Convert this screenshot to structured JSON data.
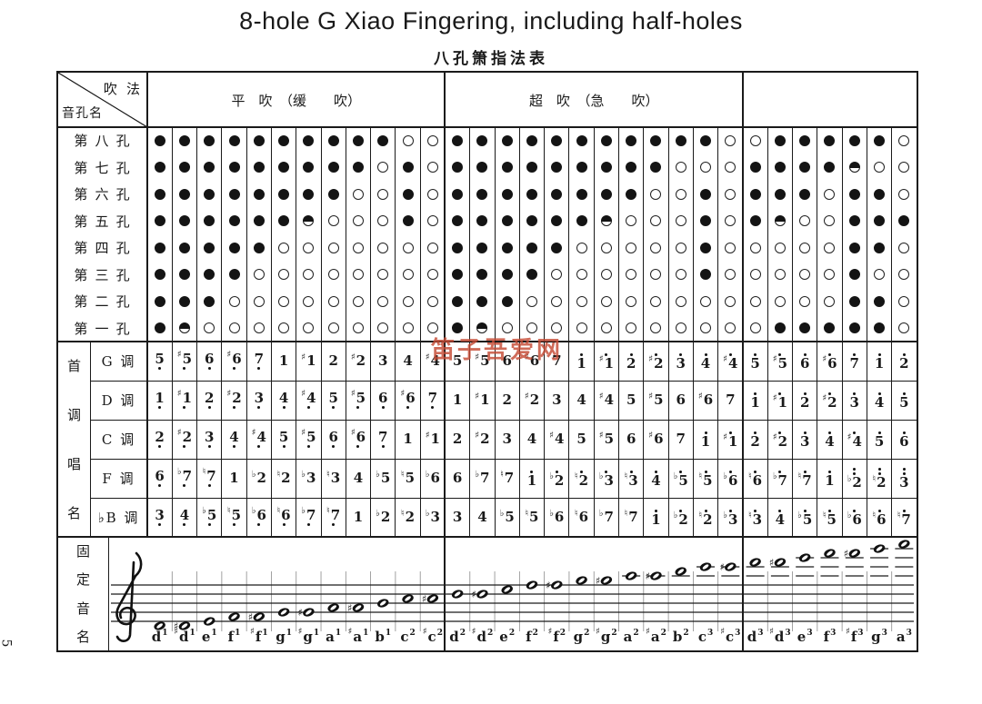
{
  "title": "8-hole G Xiao Fingering, including half-holes",
  "subtitle": "八孔箫指法表",
  "watermark": "笛子吾爱网",
  "page_number": "5",
  "corner": {
    "top_right": "吹 法",
    "bottom_left": "音孔名"
  },
  "blow_sections": [
    {
      "label": "平　吹　（缓　　吹）",
      "cols": 12
    },
    {
      "label": "超　吹　（急　　吹）",
      "cols": 12
    },
    {
      "label": "",
      "cols": 7
    }
  ],
  "hole_rows": [
    {
      "label": "第 八 孔",
      "pattern": "ffffffffffoofffffffffffoofffffo"
    },
    {
      "label": "第 七 孔",
      "pattern": "fffffffffofofffffffffoooffffhoo"
    },
    {
      "label": "第 六 孔",
      "pattern": "ffffffffoofoffffffffoofofffoffo"
    },
    {
      "label": "第 五 孔",
      "pattern": "ffffffhooofoffffffhooofofhoofff"
    },
    {
      "label": "第 四 孔",
      "pattern": "fffffooooooofffffooooofoooooffo"
    },
    {
      "label": "第 三 孔",
      "pattern": "ffffooooooooffffoooooofooooofoo"
    },
    {
      "label": "第 二 孔",
      "pattern": "fffooooooooofffoooooooooooooffo"
    },
    {
      "label": "第 一 孔",
      "pattern": "fhoooooooooofhooooooooooofffffo"
    }
  ],
  "solfege": {
    "side_label": "首调唱名",
    "rows": [
      {
        "key": "G 调",
        "cells": [
          "5,",
          "#5,",
          "6,",
          "#6,",
          "7,",
          "1",
          "#1",
          "2",
          "#2",
          "3",
          "4",
          "#4",
          "5",
          "#5",
          "6",
          "#6",
          "7",
          "1'",
          "#1'",
          "2'",
          "#2'",
          "3'",
          "4'",
          "#4'",
          "5'",
          "#5'",
          "6'",
          "#6'",
          "7'",
          "1'",
          "2'"
        ]
      },
      {
        "key": "D 调",
        "cells": [
          "1,",
          "#1,",
          "2,",
          "#2,",
          "3,",
          "4,",
          "#4,",
          "5,",
          "#5,",
          "6,",
          "#6,",
          "7,",
          "1",
          "#1",
          "2",
          "#2",
          "3",
          "4",
          "#4",
          "5",
          "#5",
          "6",
          "#6",
          "7",
          "1'",
          "#1'",
          "2'",
          "#2'",
          "3'",
          "4'",
          "5'"
        ]
      },
      {
        "key": "C 调",
        "cells": [
          "2,",
          "#2,",
          "3,",
          "4,",
          "#4,",
          "5,",
          "#5,",
          "6,",
          "#6,",
          "7,",
          "1",
          "#1",
          "2",
          "#2",
          "3",
          "4",
          "#4",
          "5",
          "#5",
          "6",
          "#6",
          "7",
          "1'",
          "#1'",
          "2'",
          "#2'",
          "3'",
          "4'",
          "#4'",
          "5'",
          "6'"
        ]
      },
      {
        "key": "F 调",
        "cells": [
          "6,",
          "b7,",
          "n7,",
          "1",
          "b2",
          "n2",
          "b3",
          "n3",
          "4",
          "b5",
          "n5",
          "b6",
          "6",
          "b7",
          "n7",
          "1'",
          "b2'",
          "n2'",
          "b3'",
          "n3'",
          "4'",
          "b5'",
          "n5'",
          "b6'",
          "n6'",
          "b7'",
          "n7'",
          "1'",
          "b2''",
          "n2''",
          "3''"
        ]
      },
      {
        "key": "♭B 调",
        "cells": [
          "3,",
          "4,",
          "b5,",
          "n5,",
          "b6,",
          "n6,",
          "b7,",
          "n7,",
          "1",
          "b2",
          "n2",
          "b3",
          "3",
          "4",
          "b5",
          "n5",
          "b6",
          "n6",
          "b7",
          "n7",
          "1'",
          "b2'",
          "n2'",
          "b3'",
          "n3'",
          "4'",
          "b5'",
          "n5'",
          "b6'",
          "n6'",
          "n7'"
        ]
      }
    ]
  },
  "fixed_pitch": {
    "side_label": "固定音名",
    "note_names": [
      "d1",
      "#d1",
      "e1",
      "f1",
      "#f1",
      "g1",
      "#g1",
      "a1",
      "#a1",
      "b1",
      "c2",
      "#c2",
      "d2",
      "#d2",
      "e2",
      "f2",
      "#f2",
      "g2",
      "#g2",
      "a2",
      "#a2",
      "b2",
      "c3",
      "#c3",
      "d3",
      "#d3",
      "e3",
      "f3",
      "#f3",
      "g3",
      "a3"
    ]
  }
}
